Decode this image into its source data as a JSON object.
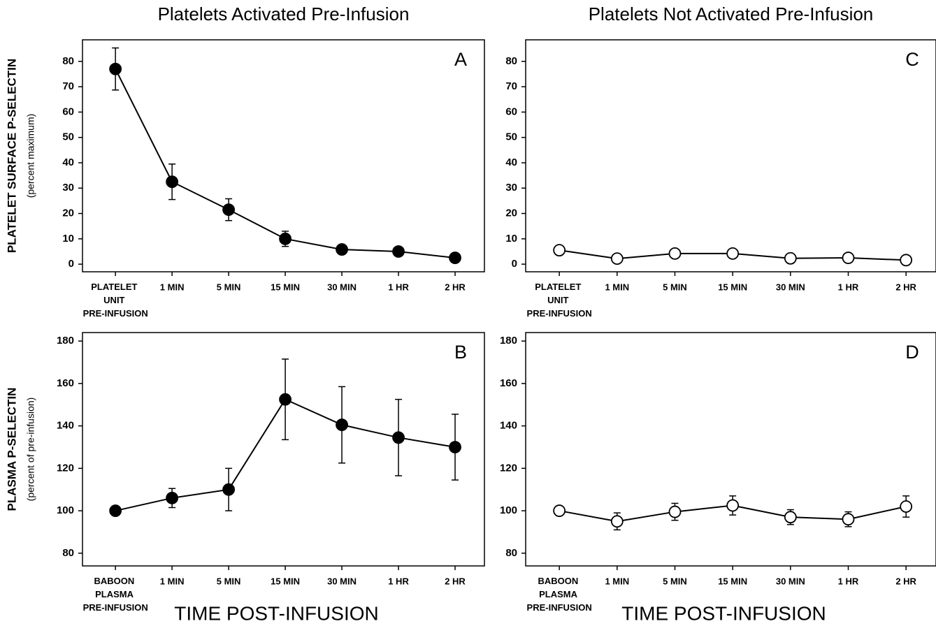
{
  "chart_data": [
    {
      "type": "line",
      "title": "Platelets Activated Pre-Infusion",
      "panel_label": "A",
      "ylabel": "PLATELET SURFACE P-SELECTIN",
      "ylabel_sub": "(percent maximum)",
      "categories": [
        "PLATELET UNIT PRE-INFUSION",
        "1 MIN",
        "5 MIN",
        "15 MIN",
        "30 MIN",
        "1 HR",
        "2 HR"
      ],
      "series": [
        {
          "color": "#000000",
          "marker_fill": "#000000",
          "values": [
            77,
            32.5,
            21.5,
            10,
            5.8,
            5,
            2.5
          ],
          "errors": [
            8.3,
            7,
            4.3,
            3,
            null,
            null,
            null
          ]
        }
      ],
      "ylim": [
        -3,
        88.5
      ],
      "yticks": [
        0,
        10,
        20,
        30,
        40,
        50,
        60,
        70,
        80
      ]
    },
    {
      "type": "line",
      "panel_label": "B",
      "ylabel": "PLASMA P-SELECTIN",
      "ylabel_sub": "(percent of pre-infusion)",
      "xlabel": "TIME POST-INFUSION",
      "categories": [
        "BABOON PLASMA PRE-INFUSION",
        "1 MIN",
        "5 MIN",
        "15 MIN",
        "30 MIN",
        "1 HR",
        "2 HR"
      ],
      "series": [
        {
          "color": "#000000",
          "marker_fill": "#000000",
          "values": [
            100,
            106,
            110,
            152.5,
            140.5,
            134.5,
            130
          ],
          "errors": [
            null,
            4.5,
            10,
            19,
            18,
            18,
            15.5
          ]
        }
      ],
      "ylim": [
        74,
        184
      ],
      "yticks": [
        80,
        100,
        120,
        140,
        160,
        180
      ]
    },
    {
      "type": "line",
      "title": "Platelets Not Activated Pre-Infusion",
      "panel_label": "C",
      "categories": [
        "PLATELET UNIT PRE-INFUSION",
        "1 MIN",
        "5 MIN",
        "15 MIN",
        "30 MIN",
        "1 HR",
        "2 HR"
      ],
      "series": [
        {
          "color": "#000000",
          "marker_fill": "#ffffff",
          "values": [
            5.5,
            2.2,
            4.2,
            4.2,
            2.3,
            2.5,
            1.6
          ],
          "errors": [
            null,
            null,
            null,
            null,
            null,
            null,
            null
          ]
        }
      ],
      "ylim": [
        -3,
        88.5
      ],
      "yticks": [
        0,
        10,
        20,
        30,
        40,
        50,
        60,
        70,
        80
      ]
    },
    {
      "type": "line",
      "panel_label": "D",
      "xlabel": "TIME POST-INFUSION",
      "categories": [
        "BABOON PLASMA PRE-INFUSION",
        "1 MIN",
        "5 MIN",
        "15 MIN",
        "30 MIN",
        "1 HR",
        "2 HR"
      ],
      "series": [
        {
          "color": "#000000",
          "marker_fill": "#ffffff",
          "values": [
            100,
            95,
            99.5,
            102.5,
            97,
            96,
            102
          ],
          "errors": [
            null,
            4,
            4,
            4.5,
            3.5,
            3.5,
            5
          ]
        }
      ],
      "ylim": [
        74,
        184
      ],
      "yticks": [
        80,
        100,
        120,
        140,
        160,
        180
      ]
    }
  ]
}
